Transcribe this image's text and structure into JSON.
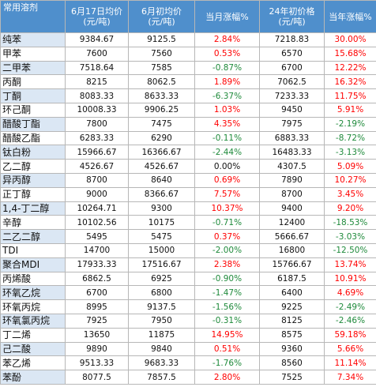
{
  "table": {
    "headers": [
      [
        "常用溶剂"
      ],
      [
        "6月17日均价",
        "(元/吨)"
      ],
      [
        "6月初均价",
        "(元/吨)"
      ],
      [
        "当月涨幅%"
      ],
      [
        "24年初价格",
        "(元/吨)"
      ],
      [
        "当年涨幅%"
      ]
    ],
    "rows": [
      [
        "纯苯",
        "9384.67",
        "9125.5",
        "2.84%",
        "7218.83",
        "30.00%"
      ],
      [
        "甲苯",
        "7600",
        "7560",
        "0.53%",
        "6570",
        "15.68%"
      ],
      [
        "二甲苯",
        "7518.64",
        "7585",
        "-0.87%",
        "6700",
        "12.22%"
      ],
      [
        "丙酮",
        "8215",
        "8062.5",
        "1.89%",
        "7062.5",
        "16.32%"
      ],
      [
        "丁酮",
        "8083.33",
        "8633.33",
        "-6.37%",
        "7233.33",
        "11.75%"
      ],
      [
        "环己酮",
        "10008.33",
        "9906.25",
        "1.03%",
        "9450",
        "5.91%"
      ],
      [
        "醋酸丁酯",
        "7800",
        "7475",
        "4.35%",
        "7975",
        "-2.19%"
      ],
      [
        "醋酸乙酯",
        "6283.33",
        "6290",
        "-0.11%",
        "6883.33",
        "-8.72%"
      ],
      [
        "钛白粉",
        "15966.67",
        "16366.67",
        "-2.44%",
        "16483.33",
        "-3.13%"
      ],
      [
        "乙二醇",
        "4526.67",
        "4526.67",
        "0.00%",
        "4307.5",
        "5.09%"
      ],
      [
        "异丙醇",
        "8700",
        "8640",
        "0.69%",
        "7890",
        "10.27%"
      ],
      [
        "正丁醇",
        "9000",
        "8366.67",
        "7.57%",
        "8700",
        "3.45%"
      ],
      [
        "1,4-丁二醇",
        "10264.71",
        "9300",
        "10.37%",
        "9400",
        "9.20%"
      ],
      [
        "辛醇",
        "10102.56",
        "10175",
        "-0.71%",
        "12400",
        "-18.53%"
      ],
      [
        "二乙二醇",
        "5495",
        "5475",
        "0.37%",
        "5666.67",
        "-3.03%"
      ],
      [
        "TDI",
        "14700",
        "15000",
        "-2.00%",
        "16800",
        "-12.50%"
      ],
      [
        "聚合MDI",
        "17933.33",
        "17516.67",
        "2.38%",
        "15766.67",
        "13.74%"
      ],
      [
        "丙烯酸",
        "6862.5",
        "6925",
        "-0.90%",
        "6187.5",
        "10.91%"
      ],
      [
        "环氧乙烷",
        "6700",
        "6800",
        "-1.47%",
        "6400",
        "4.69%"
      ],
      [
        "环氧丙烷",
        "8995",
        "9137.5",
        "-1.56%",
        "9225",
        "-2.49%"
      ],
      [
        "环氧氯丙烷",
        "7925",
        "7950",
        "-0.31%",
        "8125",
        "-2.46%"
      ],
      [
        "丁二烯",
        "13650",
        "11875",
        "14.95%",
        "8575",
        "59.18%"
      ],
      [
        "己二酸",
        "9890",
        "9840",
        "0.51%",
        "9360",
        "5.66%"
      ],
      [
        "苯乙烯",
        "9513.33",
        "9683.33",
        "-1.76%",
        "8560",
        "11.14%"
      ],
      [
        "苯酚",
        "8077.5",
        "7857.5",
        "2.80%",
        "7525",
        "7.34%"
      ]
    ]
  },
  "colors": {
    "header_bg": "#4f8fcc",
    "name_band": "#dbe7f4",
    "positive": "#ff0000",
    "negative": "#1f8a3b"
  }
}
